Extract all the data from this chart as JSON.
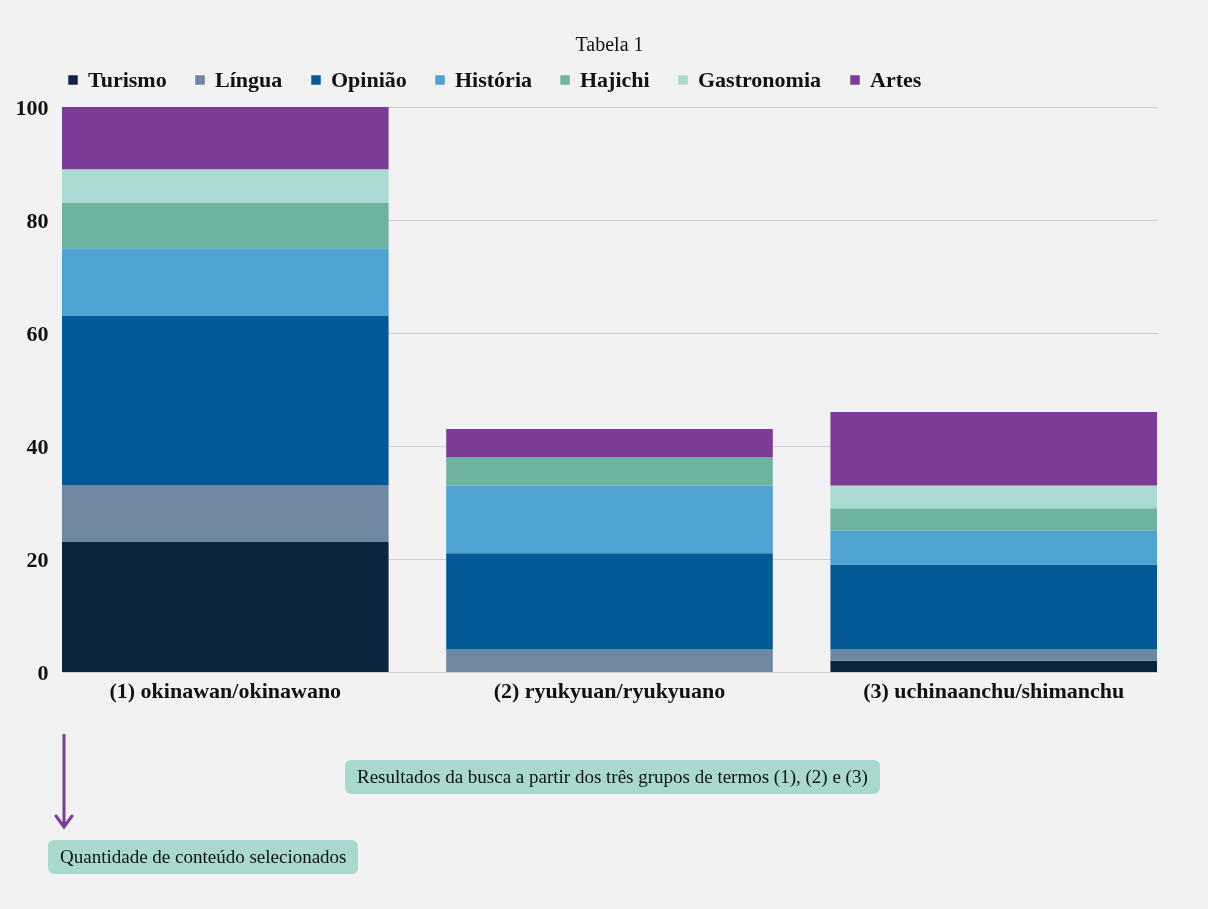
{
  "chart_data": {
    "type": "bar",
    "title": "Tabela 1",
    "categories": [
      "(1) okinawan/okinawano",
      "(2) ryukyuan/ryukyuano",
      "(3) uchinaanchu/shimanchu"
    ],
    "series": [
      {
        "name": "Turismo",
        "color": "#0b2440",
        "values": [
          23,
          0,
          2
        ]
      },
      {
        "name": "Língua",
        "color": "#6f87a0",
        "values": [
          10,
          4,
          2
        ]
      },
      {
        "name": "Opinião",
        "color": "#045a96",
        "values": [
          30,
          17,
          15
        ]
      },
      {
        "name": "História",
        "color": "#4fa3d2",
        "values": [
          12,
          12,
          6
        ]
      },
      {
        "name": "Hajichi",
        "color": "#6db3a0",
        "values": [
          8,
          5,
          4
        ]
      },
      {
        "name": "Gastronomia",
        "color": "#a9dbd2",
        "values": [
          6,
          0,
          4
        ]
      },
      {
        "name": "Artes",
        "color": "#7b3b96",
        "values": [
          11,
          5,
          13
        ]
      }
    ],
    "stacked": true,
    "ylim": [
      0,
      100
    ],
    "yticks": [
      0,
      20,
      40,
      60,
      80,
      100
    ],
    "grid": "y",
    "legend": "top",
    "annotations": [
      "Resultados da busca a partir dos três grupos de termos (1), (2) e (3)",
      "Quantidade de conteúdo selecionados"
    ]
  }
}
